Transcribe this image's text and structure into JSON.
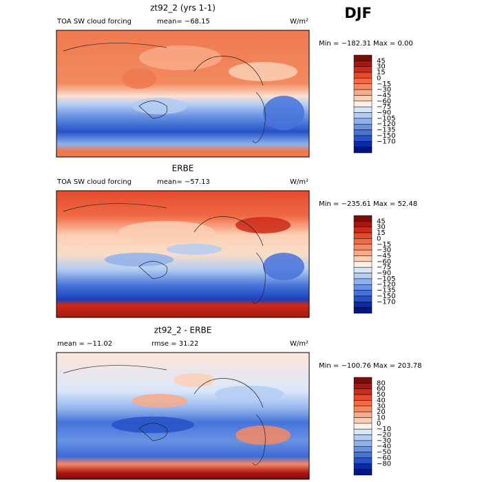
{
  "title": "DJF",
  "panels": [
    {
      "title": "zt92_2 (yrs 1-1)",
      "left": "TOA SW cloud forcing",
      "center": "mean= −68.15",
      "units": "W/m²",
      "minmax": "Min = −182.31 Max =    0.00",
      "colorbar": {
        "labels": [
          "45",
          "30",
          "15",
          "0",
          "−15",
          "−30",
          "−45",
          "−60",
          "−75",
          "−90",
          "−105",
          "−120",
          "−135",
          "−150",
          "−170"
        ],
        "colors": [
          "#7a0c0c",
          "#a8170f",
          "#cc2a1a",
          "#e44b2d",
          "#f06a43",
          "#f58a64",
          "#f9aa88",
          "#fccfb5",
          "#fdf0e6",
          "#d9e6fa",
          "#b3cdf3",
          "#8fb2ec",
          "#6a92e3",
          "#4673da",
          "#2552c8",
          "#0a2ba6",
          "#001482"
        ]
      }
    },
    {
      "title": "ERBE",
      "left": "TOA SW cloud forcing",
      "center": "mean= −57.13",
      "units": "W/m²",
      "minmax": "Min = −235.61 Max =  52.48",
      "colorbar": {
        "labels": [
          "45",
          "30",
          "15",
          "0",
          "−15",
          "−30",
          "−45",
          "−60",
          "−75",
          "−90",
          "−105",
          "−120",
          "−135",
          "−150",
          "−170"
        ],
        "colors": [
          "#7a0c0c",
          "#a8170f",
          "#cc2a1a",
          "#e44b2d",
          "#f06a43",
          "#f58a64",
          "#f9aa88",
          "#fccfb5",
          "#fdf0e6",
          "#d9e6fa",
          "#b3cdf3",
          "#8fb2ec",
          "#6a92e3",
          "#4673da",
          "#2552c8",
          "#0a2ba6",
          "#001482"
        ]
      }
    },
    {
      "title": "zt92_2 - ERBE",
      "left": "mean = −11.02",
      "center": "rmse =  31.22",
      "units": "W/m²",
      "minmax": "Min = −100.76 Max = 203.78",
      "colorbar": {
        "labels": [
          "80",
          "60",
          "50",
          "40",
          "30",
          "20",
          "10",
          "0",
          "−10",
          "−20",
          "−30",
          "−40",
          "−50",
          "−60",
          "−80"
        ],
        "colors": [
          "#7a0c0c",
          "#a8170f",
          "#cc2a1a",
          "#e44b2d",
          "#f06a43",
          "#f58a64",
          "#f9aa88",
          "#fccfb5",
          "#fdf0e6",
          "#d9e6fa",
          "#b3cdf3",
          "#8fb2ec",
          "#6a92e3",
          "#4673da",
          "#2552c8",
          "#0a2ba6",
          "#001482"
        ]
      }
    }
  ]
}
